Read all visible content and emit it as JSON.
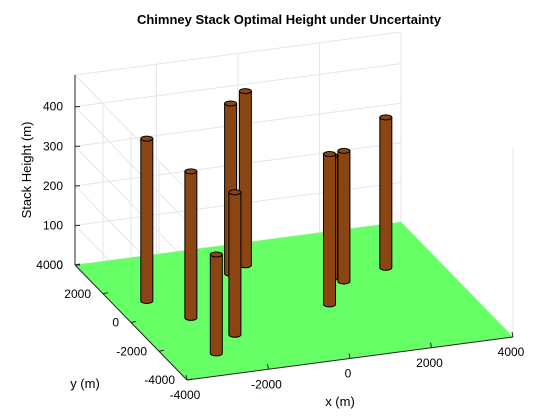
{
  "chart_data": {
    "type": "3d-bar",
    "title": "Chimney Stack Optimal Height under Uncertainty",
    "xlabel": "x (m)",
    "ylabel": "y (m)",
    "zlabel": "Stack Height (m)",
    "xlim": [
      -4000,
      4000
    ],
    "ylim": [
      -4000,
      4000
    ],
    "zlim": [
      0,
      480
    ],
    "x_ticks": [
      "-4000",
      "-2000",
      "0",
      "2000",
      "4000"
    ],
    "y_ticks": [
      "-4000",
      "-2000",
      "0",
      "2000",
      "4000"
    ],
    "z_ticks": [
      "0",
      "100",
      "200",
      "300",
      "400"
    ],
    "grid": true,
    "ground_color": "#66ff66",
    "stack_color": "#8b4513",
    "stacks": [
      {
        "x": -3200,
        "y": 1200,
        "height": 410
      },
      {
        "x": -2600,
        "y": -200,
        "height": 370
      },
      {
        "x": -2800,
        "y": -2600,
        "height": 250
      },
      {
        "x": -800,
        "y": 2200,
        "height": 430
      },
      {
        "x": -300,
        "y": 2600,
        "height": 440
      },
      {
        "x": -2000,
        "y": -1600,
        "height": 360
      },
      {
        "x": 1300,
        "y": 1100,
        "height": 310
      },
      {
        "x": 1500,
        "y": 800,
        "height": 330
      },
      {
        "x": 700,
        "y": -500,
        "height": 380
      },
      {
        "x": 2700,
        "y": 1300,
        "height": 380
      }
    ]
  }
}
